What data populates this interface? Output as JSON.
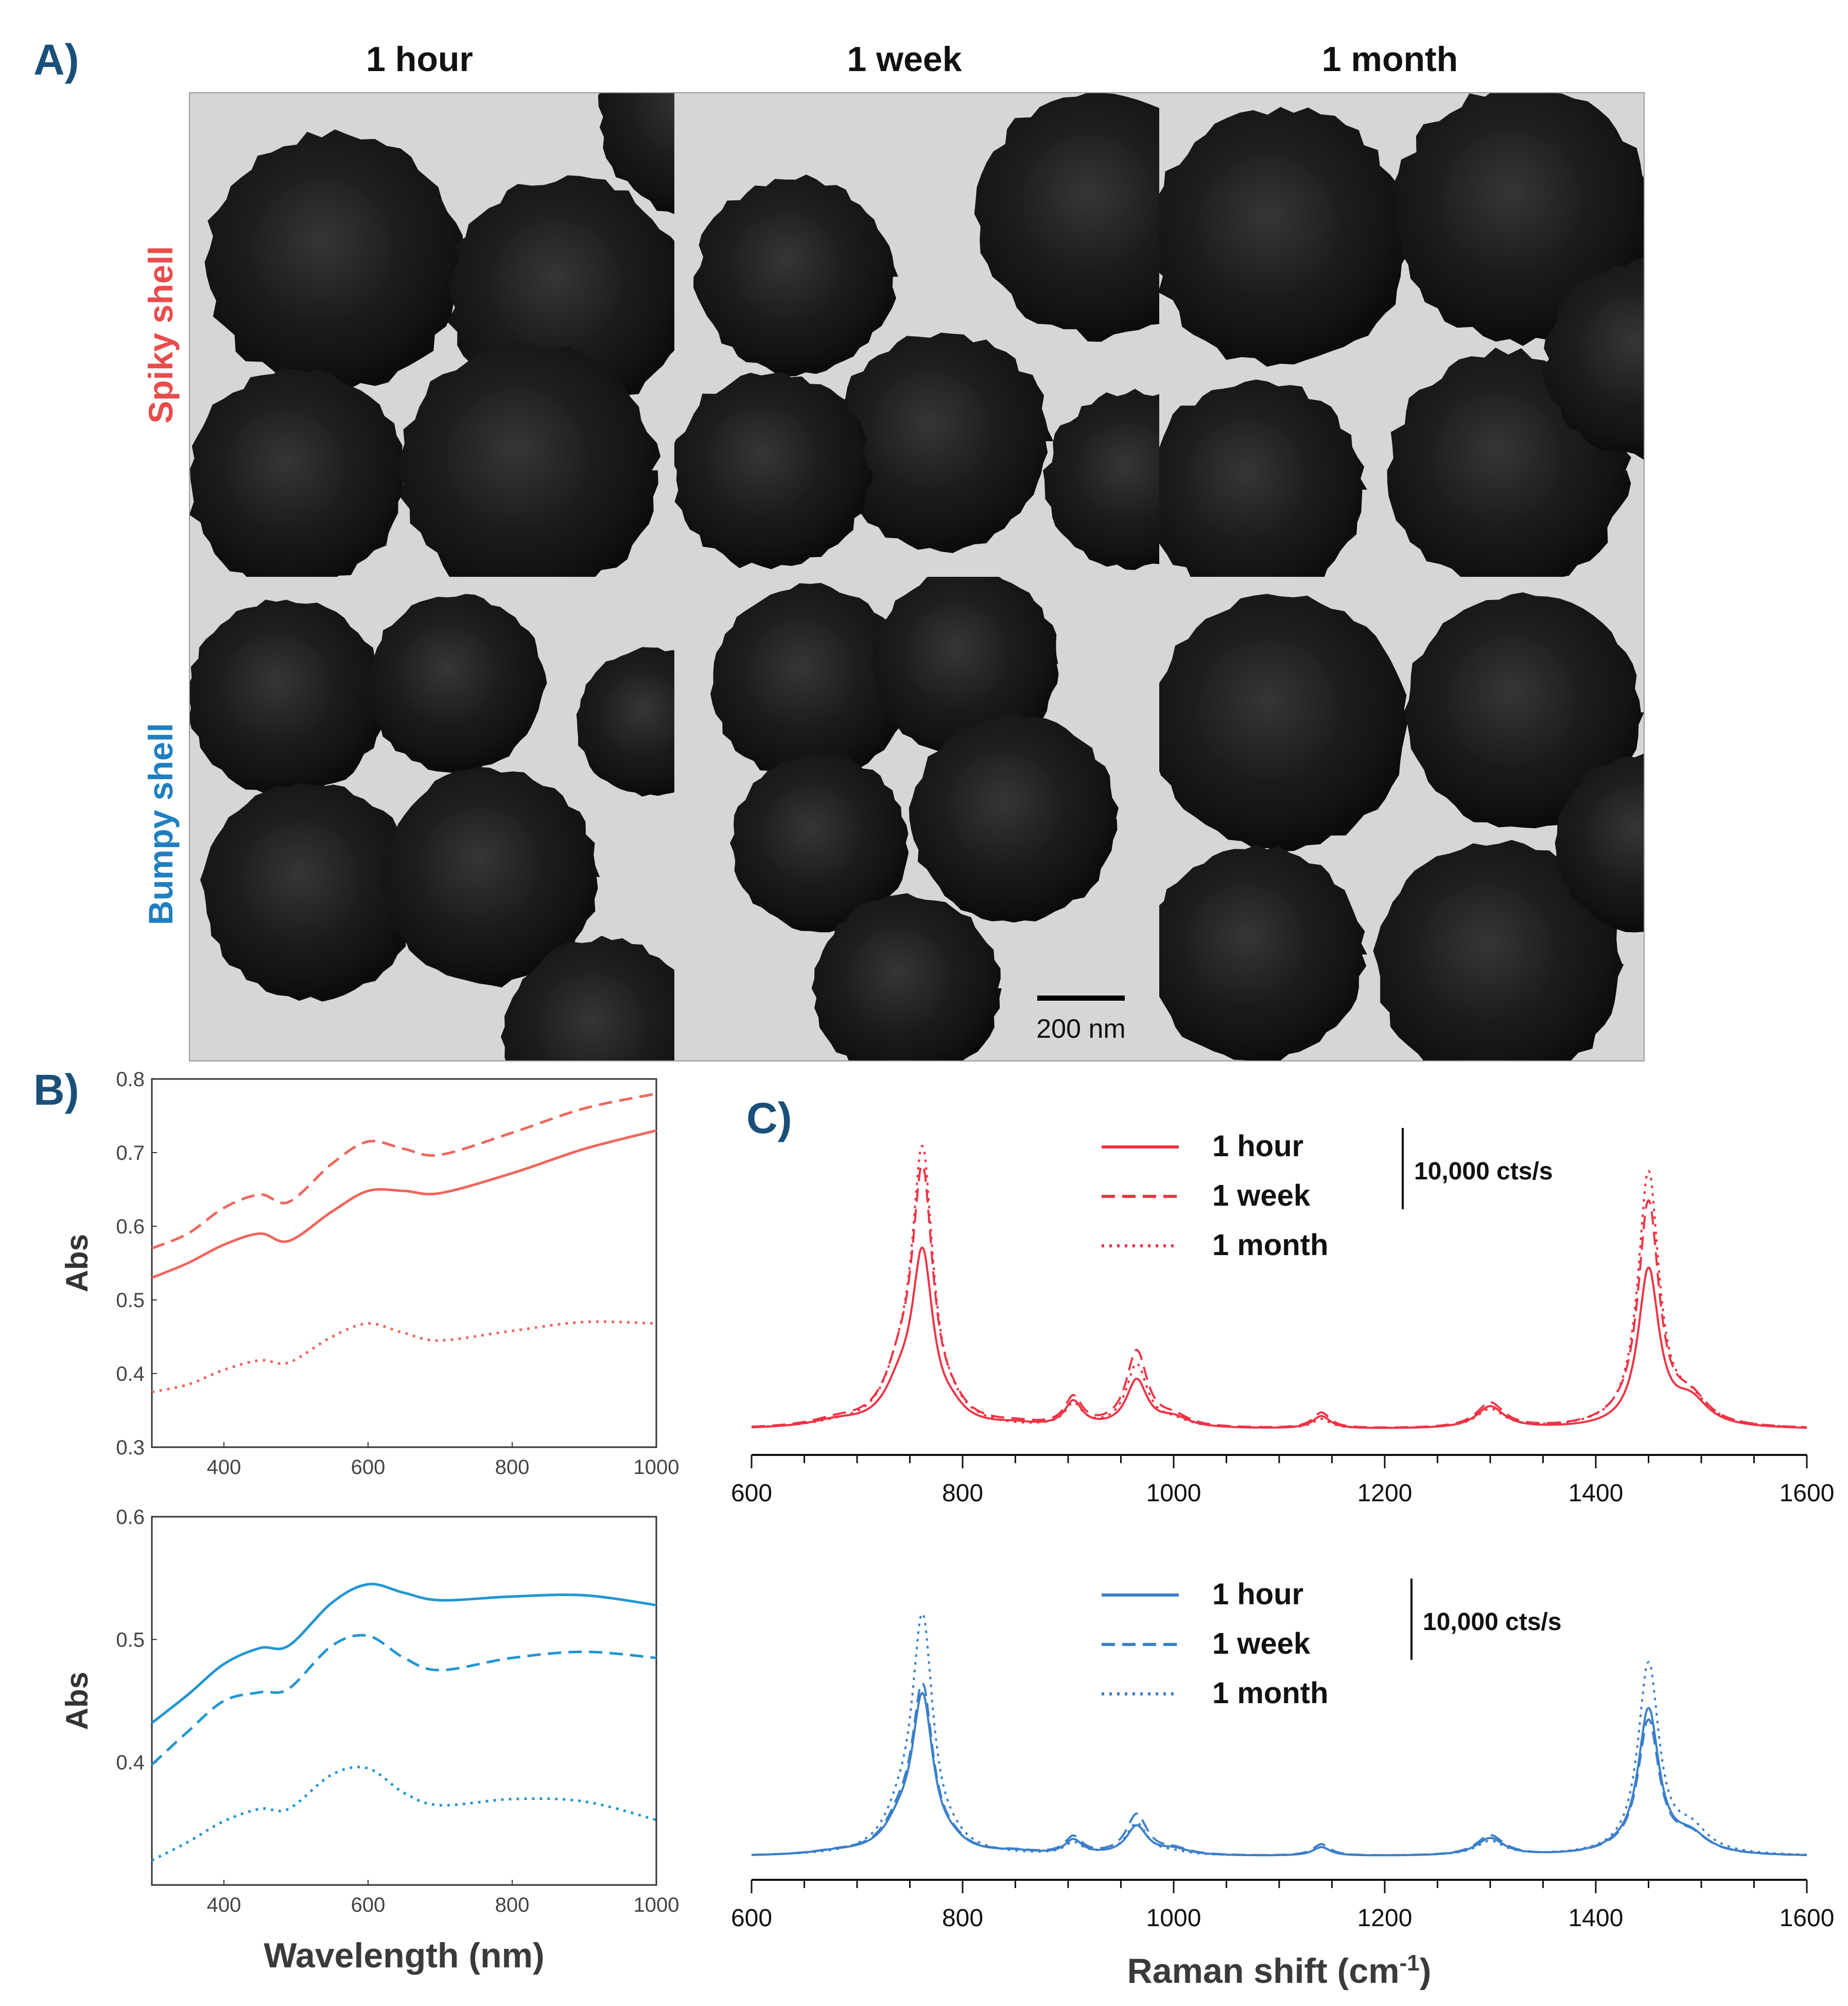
{
  "panel_labels": {
    "a": "A)",
    "b": "B)",
    "c": "C)"
  },
  "tem": {
    "columns": [
      "1 hour",
      "1 week",
      "1 month"
    ],
    "rows": [
      {
        "label": "Spiky shell",
        "color": "#e84c4c"
      },
      {
        "label": "Bumpy shell",
        "color": "#1f7fc0"
      }
    ],
    "scale_bar": "200 nm"
  },
  "colors": {
    "spiky": "#f0665c",
    "bumpy": "#2196d3",
    "raman_red": "#ee3344",
    "raman_blue": "#3a7fca",
    "label": "#1a4f7a"
  },
  "chart_data": [
    {
      "type": "line",
      "id": "uvvis-spiky",
      "xlabel": "",
      "ylabel": "Abs",
      "xlim": [
        300,
        1000
      ],
      "ylim": [
        0.3,
        0.8
      ],
      "xticks": [
        "400",
        "600",
        "800",
        "1000"
      ],
      "yticks": [
        "0.3",
        "0.4",
        "0.5",
        "0.6",
        "0.7",
        "0.8"
      ],
      "series": [
        {
          "name": "1 hour",
          "style": "solid",
          "x": [
            300,
            350,
            400,
            450,
            490,
            550,
            600,
            650,
            700,
            800,
            900,
            1000
          ],
          "y": [
            0.53,
            0.55,
            0.575,
            0.59,
            0.58,
            0.62,
            0.648,
            0.648,
            0.645,
            0.672,
            0.705,
            0.73
          ]
        },
        {
          "name": "1 week",
          "style": "dashed",
          "x": [
            300,
            350,
            400,
            450,
            490,
            550,
            600,
            650,
            700,
            800,
            900,
            1000
          ],
          "y": [
            0.57,
            0.59,
            0.625,
            0.643,
            0.633,
            0.685,
            0.715,
            0.705,
            0.697,
            0.727,
            0.76,
            0.78
          ]
        },
        {
          "name": "1 month",
          "style": "dotted",
          "x": [
            300,
            350,
            400,
            450,
            490,
            550,
            600,
            650,
            700,
            800,
            900,
            1000
          ],
          "y": [
            0.375,
            0.385,
            0.405,
            0.418,
            0.415,
            0.45,
            0.468,
            0.455,
            0.445,
            0.458,
            0.47,
            0.468
          ]
        }
      ]
    },
    {
      "type": "line",
      "id": "uvvis-bumpy",
      "xlabel": "Wavelength (nm)",
      "ylabel": "Abs",
      "xlim": [
        300,
        1000
      ],
      "ylim": [
        0.3,
        0.6
      ],
      "xticks": [
        "400",
        "600",
        "800",
        "1000"
      ],
      "yticks": [
        "0.4",
        "0.5",
        "0.6"
      ],
      "series": [
        {
          "name": "1 hour",
          "style": "solid",
          "x": [
            300,
            350,
            400,
            450,
            490,
            550,
            600,
            650,
            700,
            800,
            900,
            1000
          ],
          "y": [
            0.432,
            0.455,
            0.48,
            0.493,
            0.495,
            0.53,
            0.545,
            0.538,
            0.532,
            0.535,
            0.536,
            0.528
          ]
        },
        {
          "name": "1 week",
          "style": "dashed",
          "x": [
            300,
            350,
            400,
            450,
            490,
            550,
            600,
            650,
            700,
            800,
            900,
            1000
          ],
          "y": [
            0.398,
            0.425,
            0.45,
            0.457,
            0.46,
            0.495,
            0.503,
            0.485,
            0.475,
            0.485,
            0.49,
            0.485
          ]
        },
        {
          "name": "1 month",
          "style": "dotted",
          "x": [
            300,
            350,
            400,
            450,
            490,
            550,
            600,
            650,
            700,
            800,
            900,
            1000
          ],
          "y": [
            0.32,
            0.335,
            0.352,
            0.362,
            0.362,
            0.39,
            0.395,
            0.375,
            0.365,
            0.37,
            0.368,
            0.353
          ]
        }
      ]
    },
    {
      "type": "line",
      "id": "raman-spiky",
      "xlabel": "",
      "ylabel": "",
      "xlim": [
        600,
        1600
      ],
      "xticks": [
        "600",
        "800",
        "1000",
        "1200",
        "1400",
        "1600"
      ],
      "legend": [
        "1 hour",
        "1 week",
        "1 month"
      ],
      "scale_bar": "10,000 cts/s",
      "peaks_x": [
        680,
        740,
        762,
        790,
        850,
        905,
        965,
        1000,
        1140,
        1300,
        1420,
        1450,
        1490
      ],
      "series": [
        {
          "name": "1 hour",
          "style": "solid",
          "y": [
            0.04,
            0.12,
            0.55,
            0.05,
            0.03,
            0.1,
            0.17,
            0.05,
            0.06,
            0.09,
            0.02,
            0.52,
            0.1
          ]
        },
        {
          "name": "1 week",
          "style": "dashed",
          "y": [
            0.04,
            0.15,
            0.8,
            0.05,
            0.03,
            0.11,
            0.26,
            0.05,
            0.07,
            0.1,
            0.03,
            0.73,
            0.1
          ]
        },
        {
          "name": "1 month",
          "style": "dotted",
          "y": [
            0.03,
            0.14,
            0.87,
            0.04,
            0.02,
            0.09,
            0.22,
            0.04,
            0.05,
            0.08,
            0.02,
            0.83,
            0.09
          ]
        }
      ]
    },
    {
      "type": "line",
      "id": "raman-bumpy",
      "xlabel": "Raman shift (cm-1)",
      "ylabel": "",
      "xlim": [
        600,
        1600
      ],
      "xticks": [
        "600",
        "800",
        "1000",
        "1200",
        "1400",
        "1600"
      ],
      "legend": [
        "1 hour",
        "1 week",
        "1 month"
      ],
      "scale_bar": "10,000 cts/s",
      "peaks_x": [
        680,
        740,
        762,
        790,
        850,
        905,
        965,
        1000,
        1140,
        1300,
        1420,
        1450,
        1490
      ],
      "series": [
        {
          "name": "1 hour",
          "style": "solid",
          "y": [
            0.03,
            0.1,
            0.55,
            0.04,
            0.03,
            0.07,
            0.12,
            0.04,
            0.05,
            0.08,
            0.03,
            0.52,
            0.08
          ]
        },
        {
          "name": "1 week",
          "style": "dashed",
          "y": [
            0.03,
            0.11,
            0.58,
            0.04,
            0.03,
            0.08,
            0.16,
            0.04,
            0.06,
            0.09,
            0.03,
            0.48,
            0.08
          ]
        },
        {
          "name": "1 month",
          "style": "dotted",
          "y": [
            0.02,
            0.12,
            0.82,
            0.04,
            0.02,
            0.06,
            0.13,
            0.03,
            0.05,
            0.07,
            0.02,
            0.68,
            0.1
          ]
        }
      ]
    }
  ]
}
